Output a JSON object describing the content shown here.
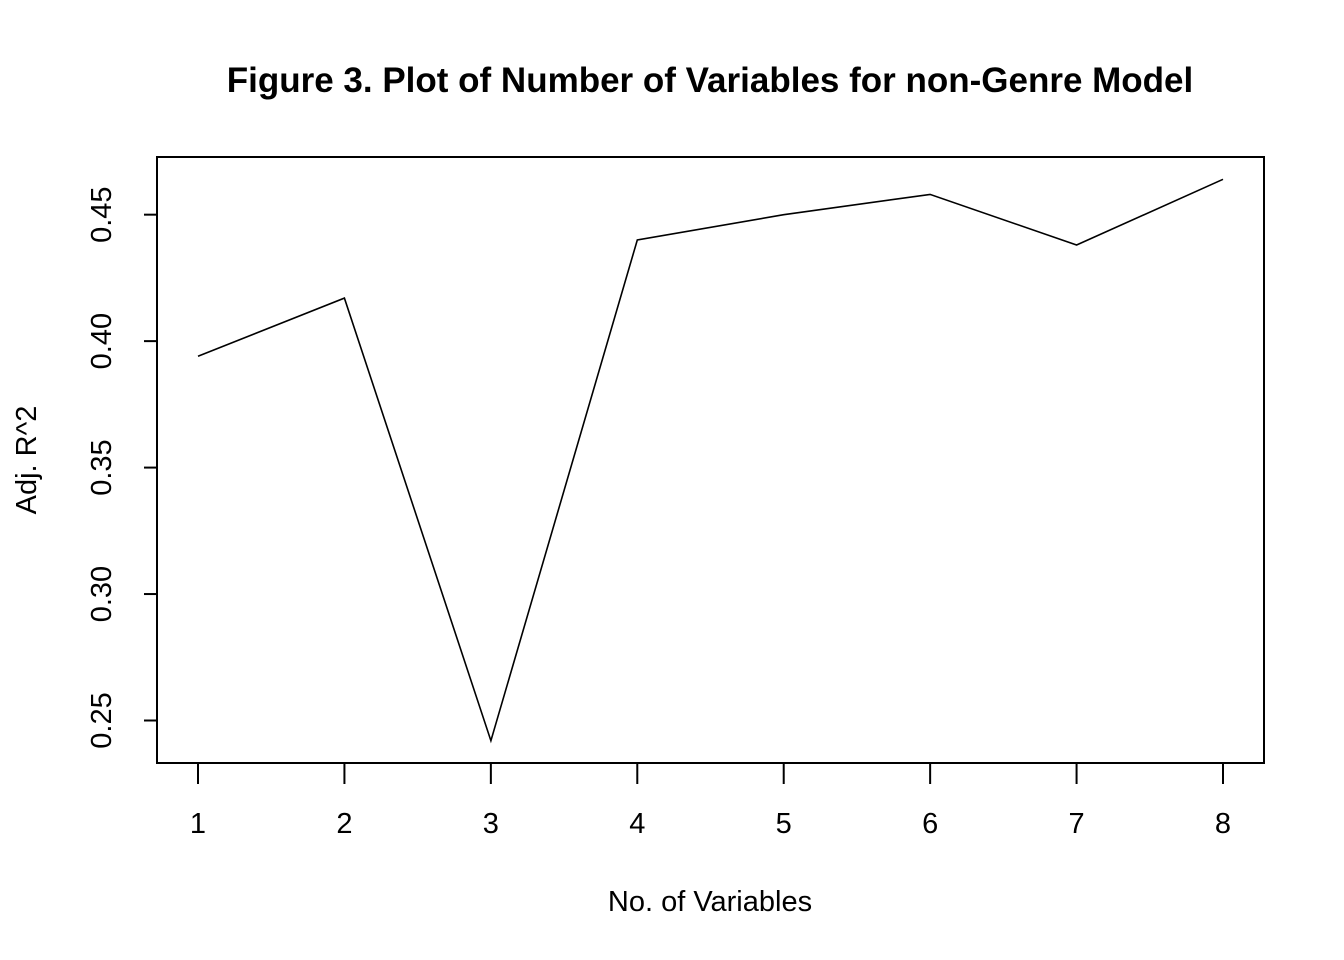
{
  "chart_data": {
    "type": "line",
    "title": "Figure 3. Plot of Number of Variables for non-Genre Model",
    "xlabel": "No. of Variables",
    "ylabel": "Adj. R^2",
    "x": [
      1,
      2,
      3,
      4,
      5,
      6,
      7,
      8
    ],
    "series": [
      {
        "values": [
          0.394,
          0.417,
          0.242,
          0.44,
          0.45,
          0.458,
          0.438,
          0.464
        ]
      }
    ],
    "x_ticks": [
      "1",
      "2",
      "3",
      "4",
      "5",
      "6",
      "7",
      "8"
    ],
    "y_ticks": [
      "0.25",
      "0.30",
      "0.35",
      "0.40",
      "0.45"
    ],
    "xlim": [
      0.72,
      8.28
    ],
    "ylim": [
      0.2332,
      0.4728
    ],
    "grid": false,
    "legend": "none",
    "colors": {
      "line": "#000000",
      "axis": "#000000",
      "background": "#ffffff"
    }
  }
}
